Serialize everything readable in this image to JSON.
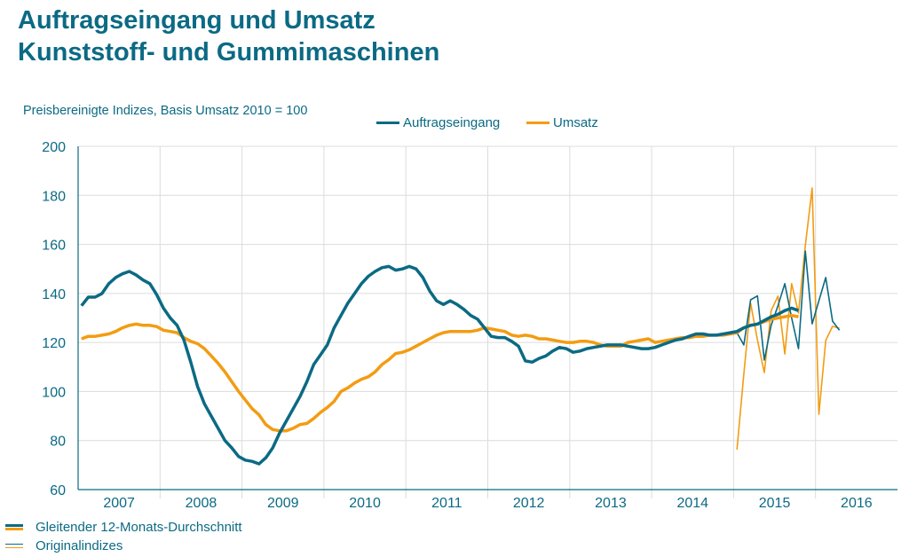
{
  "title_line1": "Auftragseingang und Umsatz",
  "title_line2": "Kunststoff- und Gummimaschinen",
  "subtitle": "Preisbereinigte Indizes, Basis Umsatz 2010 = 100",
  "legend": {
    "series1": "Auftragseingang",
    "series2": "Umsatz",
    "smooth": "Gleitender 12-Monats-Durchschnitt",
    "original": "Originalindizes"
  },
  "colors": {
    "auftragseingang": "#0b6a84",
    "umsatz": "#f39c12",
    "text": "#0b6a84",
    "grid": "#dcdcdc"
  },
  "chart_data": {
    "type": "line",
    "ylim": [
      60,
      200
    ],
    "yticks": [
      60,
      80,
      100,
      120,
      140,
      160,
      180,
      200
    ],
    "xticks": [
      "2007",
      "2008",
      "2009",
      "2010",
      "2011",
      "2012",
      "2013",
      "2014",
      "2015",
      "2016"
    ],
    "x_start": "2007-01",
    "x_end": "2016-12",
    "frequency": "monthly",
    "grid": "vertical-and-horizontal",
    "legend_placement": "top",
    "series": [
      {
        "name": "Auftragseingang",
        "kind": "Gleitender 12-Monats-Durchschnitt",
        "start": "2007-01",
        "values": [
          135,
          138.5,
          138.5,
          140,
          144,
          146.5,
          148,
          149,
          147.5,
          145.5,
          144,
          139.5,
          134,
          130,
          127,
          121,
          112,
          102,
          95,
          90,
          85,
          80,
          77,
          73.5,
          72,
          71.5,
          70.5,
          73,
          77,
          83,
          88,
          93,
          98,
          104,
          111,
          115,
          119,
          126,
          131,
          136,
          140,
          144,
          147,
          149,
          150.5,
          151,
          149.5,
          150,
          151,
          150,
          146.5,
          141,
          137,
          135.5,
          137,
          135.5,
          133.5,
          131,
          129.5,
          126,
          122.5,
          122,
          122,
          120.5,
          118.5,
          112.5,
          112,
          113.5,
          114.5,
          116.5,
          118,
          117.5,
          116,
          116.5,
          117.5,
          118,
          118.5,
          119,
          119,
          119,
          118.5,
          118,
          117.5,
          117.5,
          118,
          119,
          120,
          121,
          121.5,
          122.5,
          123.5,
          123.5,
          123,
          123,
          123.5,
          124,
          124.5,
          126,
          127,
          127.5,
          129,
          130.5,
          131.5,
          133,
          134,
          133
        ]
      },
      {
        "name": "Umsatz",
        "kind": "Gleitender 12-Monats-Durchschnitt",
        "start": "2007-01",
        "values": [
          121.5,
          122.5,
          122.5,
          123,
          123.5,
          124.5,
          126,
          127,
          127.5,
          127,
          127,
          126.5,
          125,
          124.5,
          124,
          122,
          120.5,
          119.5,
          117.5,
          114.5,
          111.5,
          108,
          104,
          100,
          96.5,
          93,
          90.5,
          86.5,
          84.5,
          84,
          84,
          85,
          86.5,
          87,
          89,
          91.5,
          93.5,
          96,
          100,
          101.5,
          103.5,
          105,
          106,
          108,
          111,
          113,
          115.5,
          116,
          117,
          118.5,
          120,
          121.5,
          123,
          124,
          124.5,
          124.5,
          124.5,
          124.5,
          125,
          126,
          125.5,
          125,
          124.5,
          123,
          122.5,
          123,
          122.5,
          121.5,
          121.5,
          121,
          120.5,
          120,
          120,
          120.5,
          120.5,
          120,
          119,
          118.5,
          118.5,
          118.5,
          120,
          120.5,
          121,
          121.5,
          120,
          120.5,
          121,
          121.5,
          122,
          122,
          122.5,
          122.5,
          123,
          123,
          123,
          123.5,
          124,
          126,
          127,
          127.5,
          128.5,
          129.5,
          130,
          130.5,
          131,
          130.5
        ]
      },
      {
        "name": "Auftragseingang",
        "kind": "Originalindizes",
        "start": "2015-01",
        "values": [
          124,
          119,
          137.4,
          139,
          112.8,
          127,
          135,
          144,
          130,
          117.5,
          157.3,
          127.6,
          137,
          146.5,
          128.7,
          125
        ]
      },
      {
        "name": "Umsatz",
        "kind": "Originalindizes",
        "start": "2015-01",
        "values": [
          76.3,
          107,
          136,
          121,
          107.7,
          133,
          138.9,
          115.3,
          144,
          132,
          159.5,
          183,
          90.7,
          120.8,
          126.6,
          125.8
        ]
      }
    ]
  }
}
